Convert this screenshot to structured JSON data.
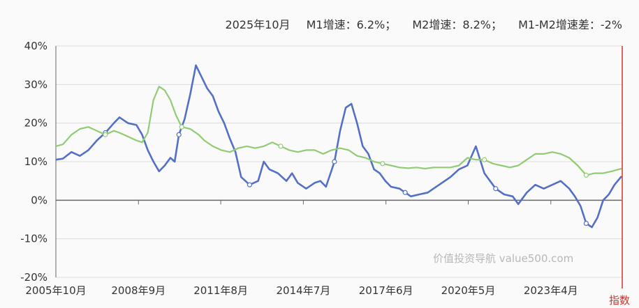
{
  "header": {
    "date": "2025年10月",
    "m1": "M1增速：6.2%；",
    "m2": "M2增速：8.2%；",
    "diff": "M1-M2增速差：-2%"
  },
  "watermark": "价值投资导航 value500.com",
  "index_label": "指数",
  "colors": {
    "m1": "#5470c6",
    "m2": "#91cc75",
    "marker": "#d0342c",
    "grid": "#dddddd"
  },
  "chart_data": {
    "type": "line",
    "ylim": [
      -20,
      40
    ],
    "yticks": [
      -20,
      -10,
      0,
      10,
      20,
      30,
      40
    ],
    "ytick_labels": [
      "-20%",
      "-10%",
      "0%",
      "10%",
      "20%",
      "30%",
      "40%"
    ],
    "xlim": [
      2005.75,
      2025.75
    ],
    "xticks": [
      {
        "x": 2005.75,
        "label": "2005年10月"
      },
      {
        "x": 2008.67,
        "label": "2008年9月"
      },
      {
        "x": 2011.58,
        "label": "2011年8月"
      },
      {
        "x": 2014.5,
        "label": "2014年7月"
      },
      {
        "x": 2017.42,
        "label": "2017年6月"
      },
      {
        "x": 2020.33,
        "label": "2020年5月"
      },
      {
        "x": 2023.25,
        "label": "2023年4月"
      }
    ],
    "series": [
      {
        "key": "m1",
        "x": [
          2005.75,
          2006.0,
          2006.3,
          2006.6,
          2006.9,
          2007.2,
          2007.5,
          2007.8,
          2008.0,
          2008.3,
          2008.6,
          2008.8,
          2009.0,
          2009.2,
          2009.4,
          2009.6,
          2009.8,
          2009.95,
          2010.1,
          2010.3,
          2010.5,
          2010.7,
          2010.9,
          2011.1,
          2011.3,
          2011.5,
          2011.7,
          2011.9,
          2012.1,
          2012.3,
          2012.6,
          2012.9,
          2013.1,
          2013.3,
          2013.6,
          2013.9,
          2014.1,
          2014.3,
          2014.6,
          2014.9,
          2015.1,
          2015.3,
          2015.6,
          2015.8,
          2016.0,
          2016.2,
          2016.4,
          2016.6,
          2016.8,
          2017.0,
          2017.2,
          2017.4,
          2017.6,
          2017.9,
          2018.1,
          2018.3,
          2018.6,
          2018.9,
          2019.1,
          2019.4,
          2019.7,
          2020.0,
          2020.3,
          2020.6,
          2020.9,
          2021.1,
          2021.3,
          2021.6,
          2021.9,
          2022.1,
          2022.4,
          2022.7,
          2023.0,
          2023.3,
          2023.6,
          2023.9,
          2024.1,
          2024.3,
          2024.5,
          2024.7,
          2024.9,
          2025.1,
          2025.3,
          2025.5,
          2025.75
        ],
        "values": [
          10.5,
          10.8,
          12.5,
          11.5,
          13,
          15.5,
          17.5,
          20,
          21.5,
          20,
          19.5,
          17,
          13,
          10,
          7.5,
          9,
          11,
          10,
          17,
          21,
          27.5,
          35,
          32,
          29,
          27,
          23,
          20,
          16,
          12.5,
          6,
          4,
          5,
          10,
          8,
          7,
          5,
          7,
          4.5,
          3,
          4.5,
          5,
          3.5,
          10,
          18,
          24,
          25,
          20,
          14,
          12,
          8,
          7,
          5,
          3.5,
          3,
          2,
          1,
          1.5,
          2,
          3,
          4.5,
          6,
          8,
          9,
          14,
          7,
          5,
          3,
          1.5,
          1,
          -1,
          2,
          4,
          3,
          4,
          5,
          3,
          1,
          -1.5,
          -6,
          -7,
          -4.5,
          0,
          1.5,
          4,
          6.2
        ]
      },
      {
        "key": "m2",
        "x": [
          2005.75,
          2006.0,
          2006.3,
          2006.6,
          2006.9,
          2007.2,
          2007.5,
          2007.8,
          2008.0,
          2008.3,
          2008.6,
          2008.8,
          2009.0,
          2009.2,
          2009.4,
          2009.6,
          2009.8,
          2010.0,
          2010.2,
          2010.5,
          2010.8,
          2011.0,
          2011.3,
          2011.6,
          2011.9,
          2012.2,
          2012.5,
          2012.8,
          2013.1,
          2013.4,
          2013.7,
          2014.0,
          2014.3,
          2014.6,
          2014.9,
          2015.2,
          2015.5,
          2015.8,
          2016.1,
          2016.4,
          2016.7,
          2017.0,
          2017.3,
          2017.6,
          2017.9,
          2018.2,
          2018.5,
          2018.8,
          2019.1,
          2019.4,
          2019.7,
          2020.0,
          2020.3,
          2020.6,
          2020.9,
          2021.2,
          2021.5,
          2021.8,
          2022.1,
          2022.4,
          2022.7,
          2023.0,
          2023.3,
          2023.6,
          2023.9,
          2024.2,
          2024.5,
          2024.8,
          2025.1,
          2025.4,
          2025.75
        ],
        "values": [
          14,
          14.5,
          17,
          18.5,
          19,
          18,
          17,
          18,
          17.5,
          16.5,
          15.5,
          15,
          17.5,
          26,
          29.5,
          28.5,
          26,
          22,
          19,
          18.5,
          17,
          15.5,
          14,
          13,
          12.5,
          13.5,
          14,
          13.5,
          14,
          15,
          14,
          13,
          12.5,
          13,
          13,
          12,
          13,
          13.5,
          13,
          11.5,
          11,
          10,
          9.5,
          9,
          8.5,
          8.3,
          8.5,
          8.2,
          8.5,
          8.5,
          8.5,
          9,
          11,
          10.5,
          10.5,
          9.5,
          9,
          8.5,
          9,
          10.5,
          12,
          12,
          12.5,
          12,
          11,
          9,
          6.5,
          7,
          7,
          7.5,
          8.2
        ]
      }
    ]
  }
}
